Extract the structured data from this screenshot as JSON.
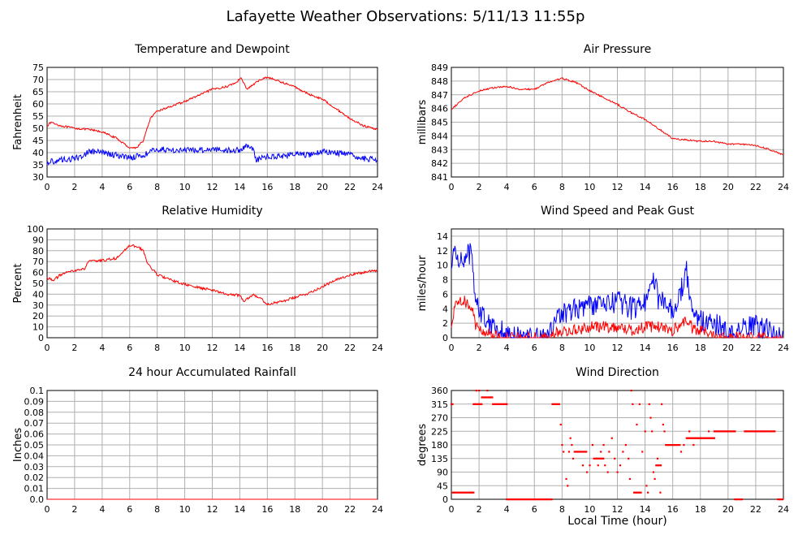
{
  "page": {
    "title": "Lafayette Weather Observations: 5/11/13 11:55p",
    "x_axis_title": "Local Time (hour)"
  },
  "colors": {
    "red": "#ff0000",
    "blue": "#0000ff",
    "grid": "#b0b0b0",
    "frame": "#000000"
  },
  "chart_data": [
    {
      "id": "temp",
      "type": "line",
      "title": "Temperature and Dewpoint",
      "xlabel": "",
      "ylabel": "Fahrenheit",
      "xlim": [
        0,
        24
      ],
      "ylim": [
        30,
        75
      ],
      "xticks": [
        0,
        2,
        4,
        6,
        8,
        10,
        12,
        14,
        16,
        18,
        20,
        22,
        24
      ],
      "yticks": [
        30,
        35,
        40,
        45,
        50,
        55,
        60,
        65,
        70,
        75
      ],
      "series": [
        {
          "color": "#ff0000",
          "noise": 0.4,
          "x": [
            0,
            0.3,
            0.5,
            1,
            2,
            3,
            4,
            5,
            6,
            6.5,
            7,
            7.5,
            8,
            9,
            10,
            11,
            12,
            13,
            13.8,
            14.1,
            14.5,
            15,
            15.5,
            16,
            17,
            18,
            19,
            20,
            21,
            22,
            23,
            24
          ],
          "y": [
            51,
            52.5,
            52,
            51,
            50,
            49.5,
            48.5,
            46,
            42,
            42,
            45,
            54,
            57,
            59,
            61,
            63.5,
            66,
            67,
            69,
            71,
            66,
            68,
            70,
            71,
            69,
            67,
            64,
            62,
            58,
            54,
            51,
            49.5
          ]
        },
        {
          "color": "#0000ff",
          "noise": 1.2,
          "x": [
            0,
            1,
            2,
            2.7,
            3,
            4,
            5,
            6,
            7,
            8,
            9,
            10,
            11,
            12,
            13,
            14,
            14.5,
            15,
            15.2,
            16,
            17,
            18,
            19,
            20,
            21,
            22,
            23,
            24
          ],
          "y": [
            36,
            37,
            37.5,
            39,
            40.5,
            40,
            39,
            38,
            39,
            41.5,
            41,
            41,
            41,
            41.5,
            41,
            41,
            43,
            41,
            37,
            38.5,
            38.5,
            39.5,
            39,
            40.5,
            40,
            39,
            37.5,
            37
          ]
        }
      ]
    },
    {
      "id": "pressure",
      "type": "line",
      "title": "Air Pressure",
      "xlabel": "",
      "ylabel": "millibars",
      "xlim": [
        0,
        24
      ],
      "ylim": [
        841,
        849
      ],
      "xticks": [
        0,
        2,
        4,
        6,
        8,
        10,
        12,
        14,
        16,
        18,
        20,
        22,
        24
      ],
      "yticks": [
        841,
        842,
        843,
        844,
        845,
        846,
        847,
        848,
        849
      ],
      "series": [
        {
          "color": "#ff0000",
          "noise": 0.06,
          "x": [
            0,
            0.5,
            1,
            2,
            3,
            4,
            5,
            6,
            7,
            8,
            9,
            10,
            11,
            12,
            13,
            14,
            15,
            16,
            17,
            18,
            19,
            20,
            21,
            22,
            23,
            24
          ],
          "y": [
            845.9,
            846.4,
            846.8,
            847.3,
            847.5,
            847.6,
            847.4,
            847.4,
            847.9,
            848.2,
            847.9,
            847.3,
            846.8,
            846.3,
            845.7,
            845.2,
            844.5,
            843.8,
            843.7,
            843.6,
            843.6,
            843.4,
            843.4,
            843.3,
            843.0,
            842.6
          ]
        }
      ]
    },
    {
      "id": "humidity",
      "type": "line",
      "title": "Relative Humidity",
      "xlabel": "",
      "ylabel": "Percent",
      "xlim": [
        0,
        24
      ],
      "ylim": [
        0,
        100
      ],
      "xticks": [
        0,
        2,
        4,
        6,
        8,
        10,
        12,
        14,
        16,
        18,
        20,
        22,
        24
      ],
      "yticks": [
        0,
        10,
        20,
        30,
        40,
        50,
        60,
        70,
        80,
        90,
        100
      ],
      "series": [
        {
          "color": "#ff0000",
          "noise": 1.2,
          "x": [
            0,
            0.5,
            1,
            2,
            2.7,
            3,
            4,
            5,
            5.5,
            6,
            6.5,
            7,
            7.3,
            8,
            9,
            10,
            11,
            12,
            13,
            14,
            14.3,
            15,
            15.5,
            16,
            17,
            18,
            19,
            20,
            21,
            22,
            23,
            24
          ],
          "y": [
            55,
            53,
            58,
            62,
            63,
            70,
            71,
            73,
            78,
            85,
            84,
            80,
            68,
            58,
            53,
            49,
            46,
            44,
            40,
            39,
            34,
            40,
            36,
            31,
            33,
            37,
            41,
            47,
            53,
            58,
            60,
            62
          ]
        }
      ]
    },
    {
      "id": "wind",
      "type": "line",
      "title": "Wind Speed and Peak Gust",
      "xlabel": "",
      "ylabel": "miles/hour",
      "xlim": [
        0,
        24
      ],
      "ylim": [
        0,
        15
      ],
      "xticks": [
        0,
        2,
        4,
        6,
        8,
        10,
        12,
        14,
        16,
        18,
        20,
        22,
        24
      ],
      "yticks": [
        0,
        2,
        4,
        6,
        8,
        10,
        12,
        14
      ],
      "series": [
        {
          "color": "#0000ff",
          "noise": 1.6,
          "x": [
            0,
            0.2,
            0.5,
            1,
            1.5,
            1.7,
            2,
            2.5,
            3,
            3.5,
            4,
            4.2,
            7,
            7.5,
            8,
            9,
            10,
            11,
            12,
            13,
            14,
            14.5,
            15,
            16,
            16.5,
            17,
            17.5,
            18,
            19,
            19.5,
            20,
            20.5,
            21,
            22,
            23,
            23.5,
            24
          ],
          "y": [
            9,
            12,
            11,
            11,
            12,
            6,
            4,
            2.5,
            2,
            1.2,
            0.5,
            0,
            0,
            2,
            3.5,
            4,
            4.5,
            4.5,
            5,
            4,
            5,
            9,
            5,
            4,
            6,
            9,
            3,
            2.5,
            2,
            1.5,
            0.2,
            0,
            1.2,
            1.5,
            1.3,
            0,
            0
          ]
        },
        {
          "color": "#ff0000",
          "noise": 0.8,
          "x": [
            0,
            0.2,
            0.5,
            1,
            1.5,
            1.7,
            2,
            2.5,
            3,
            3.5,
            7,
            7.5,
            8,
            9,
            10,
            11,
            12,
            13,
            14,
            15,
            16,
            17,
            17.5,
            18,
            19,
            20,
            21,
            24
          ],
          "y": [
            1,
            4,
            5.5,
            5,
            4,
            2,
            1,
            0.8,
            0.3,
            0,
            0,
            0.5,
            1,
            1,
            1.5,
            1.5,
            1.5,
            1,
            1.5,
            1.5,
            1,
            2.5,
            1,
            1,
            0.5,
            0,
            0,
            0
          ]
        }
      ]
    },
    {
      "id": "rain",
      "type": "line",
      "title": "24 hour Accumulated Rainfall",
      "xlabel": "",
      "ylabel": "Inches",
      "xlim": [
        0,
        24
      ],
      "ylim": [
        0,
        0.1
      ],
      "xticks": [
        0,
        2,
        4,
        6,
        8,
        10,
        12,
        14,
        16,
        18,
        20,
        22,
        24
      ],
      "yticks": [
        0.0,
        0.01,
        0.02,
        0.03,
        0.04,
        0.05,
        0.06,
        0.07,
        0.08,
        0.09,
        0.1
      ],
      "ytick_labels": [
        "0.0",
        "0.01",
        "0.02",
        "0.03",
        "0.04",
        "0.05",
        "0.06",
        "0.07",
        "0.08",
        "0.09",
        "0.1"
      ],
      "series": [
        {
          "color": "#ff0000",
          "noise": 0,
          "x": [
            0,
            24
          ],
          "y": [
            0,
            0
          ]
        }
      ]
    },
    {
      "id": "direction",
      "type": "scatter",
      "title": "Wind Direction",
      "xlabel": "Local Time (hour)",
      "ylabel": "degrees",
      "xlim": [
        0,
        24
      ],
      "ylim": [
        0,
        360
      ],
      "xticks": [
        0,
        2,
        4,
        6,
        8,
        10,
        12,
        14,
        16,
        18,
        20,
        22,
        24
      ],
      "yticks": [
        0,
        45,
        90,
        135,
        180,
        225,
        270,
        315,
        360
      ],
      "series": [
        {
          "color": "#ff0000",
          "segments": [
            {
              "x0": 0.0,
              "x1": 0.1,
              "y": 315
            },
            {
              "x0": 0.1,
              "x1": 1.6,
              "y": 22.5
            },
            {
              "x0": 1.6,
              "x1": 2.2,
              "y": 315
            },
            {
              "x0": 2.2,
              "x1": 3.0,
              "y": 337.5
            },
            {
              "x0": 3.0,
              "x1": 4.0,
              "y": 315
            },
            {
              "x0": 4.0,
              "x1": 7.3,
              "y": 0
            },
            {
              "x0": 7.3,
              "x1": 7.8,
              "y": 315
            },
            {
              "x0": 9.0,
              "x1": 9.8,
              "y": 157.5
            },
            {
              "x0": 10.4,
              "x1": 11.0,
              "y": 135
            },
            {
              "x0": 13.2,
              "x1": 13.7,
              "y": 22.5
            },
            {
              "x0": 14.8,
              "x1": 15.2,
              "y": 112.5
            },
            {
              "x0": 15.5,
              "x1": 16.5,
              "y": 180
            },
            {
              "x0": 17.0,
              "x1": 18.0,
              "y": 202.5
            },
            {
              "x0": 18.0,
              "x1": 19.0,
              "y": 202.5
            },
            {
              "x0": 19.0,
              "x1": 20.5,
              "y": 225
            },
            {
              "x0": 20.5,
              "x1": 21.0,
              "y": 0
            },
            {
              "x0": 21.2,
              "x1": 23.4,
              "y": 225
            },
            {
              "x0": 23.6,
              "x1": 24.0,
              "y": 0
            }
          ],
          "points": [
            [
              1.8,
              360
            ],
            [
              2.0,
              360
            ],
            [
              2.6,
              360
            ],
            [
              2.8,
              337.5
            ],
            [
              7.9,
              247.5
            ],
            [
              8.0,
              180
            ],
            [
              8.1,
              157.5
            ],
            [
              8.3,
              67.5
            ],
            [
              8.4,
              45
            ],
            [
              8.5,
              157.5
            ],
            [
              8.6,
              202.5
            ],
            [
              8.7,
              180
            ],
            [
              8.8,
              135
            ],
            [
              8.9,
              157.5
            ],
            [
              9.5,
              112.5
            ],
            [
              9.8,
              90
            ],
            [
              10.0,
              112.5
            ],
            [
              10.2,
              180
            ],
            [
              10.3,
              135
            ],
            [
              10.6,
              112.5
            ],
            [
              10.8,
              157.5
            ],
            [
              11.0,
              180
            ],
            [
              11.1,
              112.5
            ],
            [
              11.3,
              90
            ],
            [
              11.4,
              157.5
            ],
            [
              11.6,
              202.5
            ],
            [
              11.8,
              135
            ],
            [
              12.0,
              90
            ],
            [
              12.2,
              112.5
            ],
            [
              12.4,
              157.5
            ],
            [
              12.6,
              180
            ],
            [
              12.8,
              135
            ],
            [
              12.9,
              67.5
            ],
            [
              13.0,
              360
            ],
            [
              13.1,
              315
            ],
            [
              13.4,
              247.5
            ],
            [
              13.6,
              315
            ],
            [
              13.8,
              157.5
            ],
            [
              14.0,
              225
            ],
            [
              14.1,
              45
            ],
            [
              14.2,
              22.5
            ],
            [
              14.3,
              315
            ],
            [
              14.4,
              270
            ],
            [
              14.5,
              225
            ],
            [
              14.6,
              90
            ],
            [
              14.7,
              67.5
            ],
            [
              14.9,
              135
            ],
            [
              15.1,
              22.5
            ],
            [
              15.2,
              315
            ],
            [
              15.3,
              247.5
            ],
            [
              15.4,
              225
            ],
            [
              16.6,
              157.5
            ],
            [
              16.8,
              180
            ],
            [
              17.2,
              225
            ],
            [
              17.5,
              180
            ],
            [
              18.6,
              225
            ]
          ]
        }
      ]
    }
  ]
}
